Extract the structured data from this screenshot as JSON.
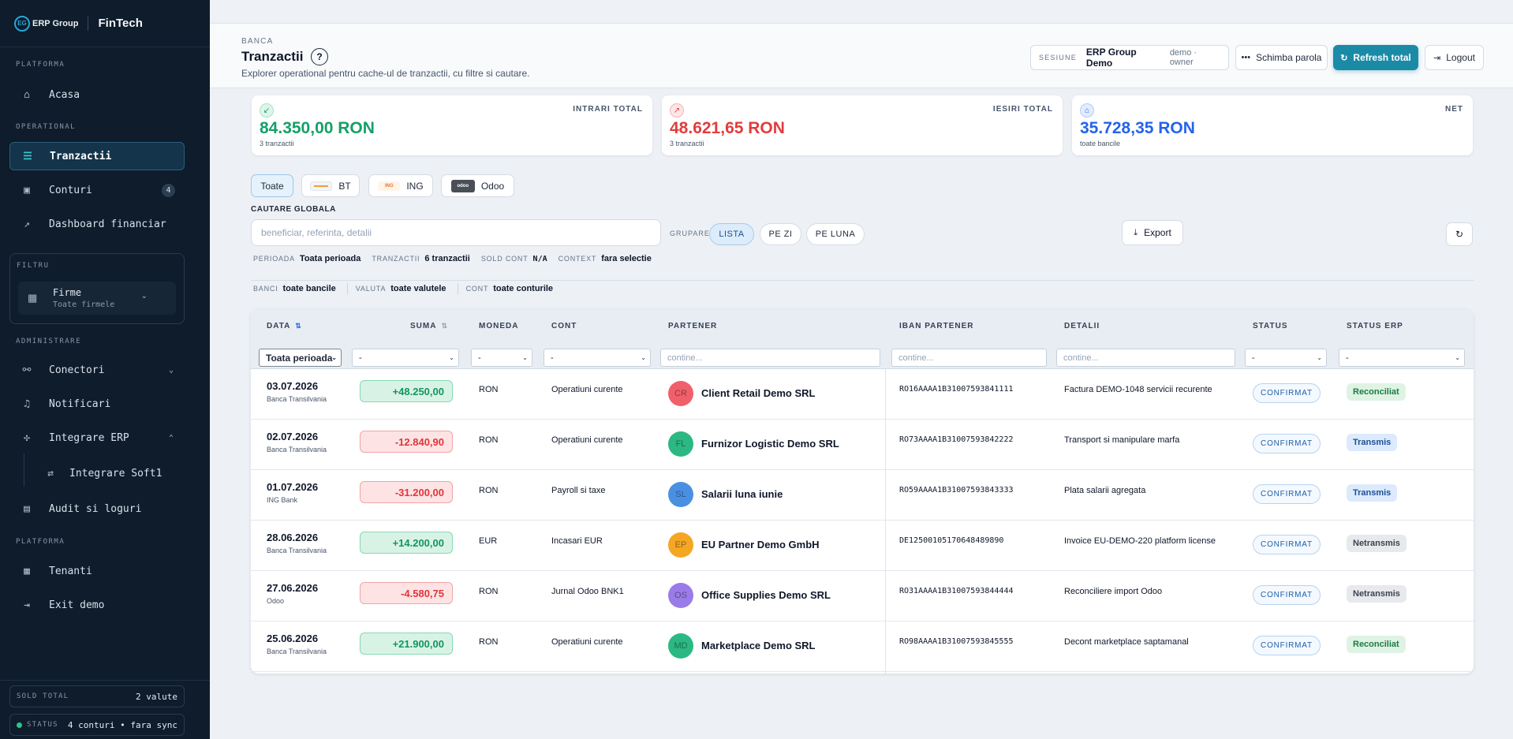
{
  "sidebar": {
    "brand_logo": "EG",
    "brand_name": "ERP Group",
    "product": "FinTech",
    "sections": {
      "platforma": "PLATFORMA",
      "operational": "OPERATIONAL",
      "filtru": "FILTRU",
      "administrare": "ADMINISTRARE",
      "platforma2": "PLATFORMA"
    },
    "items": {
      "acasa": "Acasa",
      "tranzactii": "Tranzactii",
      "conturi": "Conturi",
      "conturi_badge": "4",
      "dashboard": "Dashboard financiar",
      "conectori": "Conectori",
      "notificari": "Notificari",
      "integrare_erp": "Integrare ERP",
      "integrare_soft1": "Integrare Soft1",
      "audit": "Audit si loguri",
      "tenanti": "Tenanti",
      "exit_demo": "Exit demo"
    },
    "filter": {
      "title": "Firme",
      "subtitle": "Toate firmele"
    },
    "sold_total": {
      "label": "SOLD TOTAL",
      "value": "2 valute"
    },
    "status": {
      "label": "STATUS",
      "value": "4 conturi • fara sync"
    }
  },
  "header": {
    "kicker": "BANCA",
    "title": "Tranzactii",
    "help": "?",
    "subtitle": "Explorer operational pentru cache-ul de tranzactii, cu filtre si cautare.",
    "session_label": "SESIUNE",
    "session_name": "ERP Group Demo",
    "session_role": "demo · owner",
    "change_password": "Schimba parola",
    "refresh_total": "Refresh total",
    "logout": "Logout"
  },
  "cards": [
    {
      "label": "INTRARI TOTAL",
      "amount": "84.350,00 RON",
      "sub": "3 tranzactii",
      "color": "#14a06a",
      "icon": "↙"
    },
    {
      "label": "IESIRI TOTAL",
      "amount": "48.621,65 RON",
      "sub": "3 tranzactii",
      "color": "#e23c3c",
      "icon": "↗"
    },
    {
      "label": "NET",
      "amount": "35.728,35 RON",
      "sub": "toate bancile",
      "color": "#2563eb",
      "icon": "⌂"
    }
  ],
  "bank_filters": {
    "all": "Toate",
    "bt": "BT",
    "ing": "ING",
    "odoo": "Odoo",
    "ing_logo": "ING",
    "odoo_logo": "odoo"
  },
  "search": {
    "label": "CAUTARE GLOBALA",
    "placeholder": "beneficiar, referinta, detalii",
    "group_label": "GRUPARE",
    "group_options": [
      "LISTA",
      "PE ZI",
      "PE LUNA"
    ],
    "export": "Export"
  },
  "meta": {
    "perioada_l": "PERIOADA",
    "perioada_v": "Toata perioada",
    "tranzactii_l": "TRANZACTII",
    "tranzactii_v": "6 tranzactii",
    "sold_l": "SOLD CONT",
    "sold_v": "N/A",
    "context_l": "CONTEXT",
    "context_v": "fara selectie",
    "banci_l": "BANCI",
    "banci_v": "toate bancile",
    "valuta_l": "VALUTA",
    "valuta_v": "toate valutele",
    "cont_l": "CONT",
    "cont_v": "toate conturile"
  },
  "table": {
    "columns": [
      "DATA",
      "SUMA",
      "MONEDA",
      "CONT",
      "PARTENER",
      "IBAN PARTENER",
      "DETALII",
      "STATUS",
      "STATUS ERP"
    ],
    "filters": {
      "data": "Toata perioada",
      "dash": "-",
      "placeholder": "contine..."
    },
    "rows": [
      {
        "date": "03.07.2026",
        "bank": "Banca Transilvania",
        "amount": "+48.250,00",
        "sign": "pos",
        "currency": "RON",
        "account": "Operatiuni curente",
        "initials": "CR",
        "avatar_color": "#f0606a",
        "partner": "Client Retail Demo SRL",
        "iban": "RO16AAAA1B31007593841111",
        "details": "Factura DEMO-1048 servicii recurente",
        "status": "CONFIRMAT",
        "erp": "Reconciliat",
        "erp_kind": "rec"
      },
      {
        "date": "02.07.2026",
        "bank": "Banca Transilvania",
        "amount": "-12.840,90",
        "sign": "neg",
        "currency": "RON",
        "account": "Operatiuni curente",
        "initials": "FL",
        "avatar_color": "#2cb882",
        "partner": "Furnizor Logistic Demo SRL",
        "iban": "RO73AAAA1B31007593842222",
        "details": "Transport si manipulare marfa",
        "status": "CONFIRMAT",
        "erp": "Transmis",
        "erp_kind": "tra"
      },
      {
        "date": "01.07.2026",
        "bank": "ING Bank",
        "amount": "-31.200,00",
        "sign": "neg",
        "currency": "RON",
        "account": "Payroll si taxe",
        "initials": "SL",
        "avatar_color": "#4a90e2",
        "partner": "Salarii luna iunie",
        "iban": "RO59AAAA1B31007593843333",
        "details": "Plata salarii agregata",
        "status": "CONFIRMAT",
        "erp": "Transmis",
        "erp_kind": "tra"
      },
      {
        "date": "28.06.2026",
        "bank": "Banca Transilvania",
        "amount": "+14.200,00",
        "sign": "pos",
        "currency": "EUR",
        "account": "Incasari EUR",
        "initials": "EP",
        "avatar_color": "#f5a623",
        "partner": "EU Partner Demo GmbH",
        "iban": "DE12500105170648489890",
        "details": "Invoice EU-DEMO-220 platform license",
        "status": "CONFIRMAT",
        "erp": "Netransmis",
        "erp_kind": "net"
      },
      {
        "date": "27.06.2026",
        "bank": "Odoo",
        "amount": "-4.580,75",
        "sign": "neg",
        "currency": "RON",
        "account": "Jurnal Odoo BNK1",
        "initials": "OS",
        "avatar_color": "#9a7be8",
        "partner": "Office Supplies Demo SRL",
        "iban": "RO31AAAA1B31007593844444",
        "details": "Reconciliere import Odoo",
        "status": "CONFIRMAT",
        "erp": "Netransmis",
        "erp_kind": "net"
      },
      {
        "date": "25.06.2026",
        "bank": "Banca Transilvania",
        "amount": "+21.900,00",
        "sign": "pos",
        "currency": "RON",
        "account": "Operatiuni curente",
        "initials": "MD",
        "avatar_color": "#2cb882",
        "partner": "Marketplace Demo SRL",
        "iban": "RO98AAAA1B31007593845555",
        "details": "Decont marketplace saptamanal",
        "status": "CONFIRMAT",
        "erp": "Reconciliat",
        "erp_kind": "rec"
      }
    ]
  },
  "icons": [
    "home-icon",
    "list-icon",
    "wallet-icon",
    "chart-icon",
    "building-icon",
    "plug-icon",
    "bell-icon",
    "hub-icon",
    "swap-icon",
    "doc-icon",
    "exit-icon",
    "refresh-icon",
    "key-icon",
    "logout-icon",
    "download-icon",
    "sort-icon"
  ]
}
